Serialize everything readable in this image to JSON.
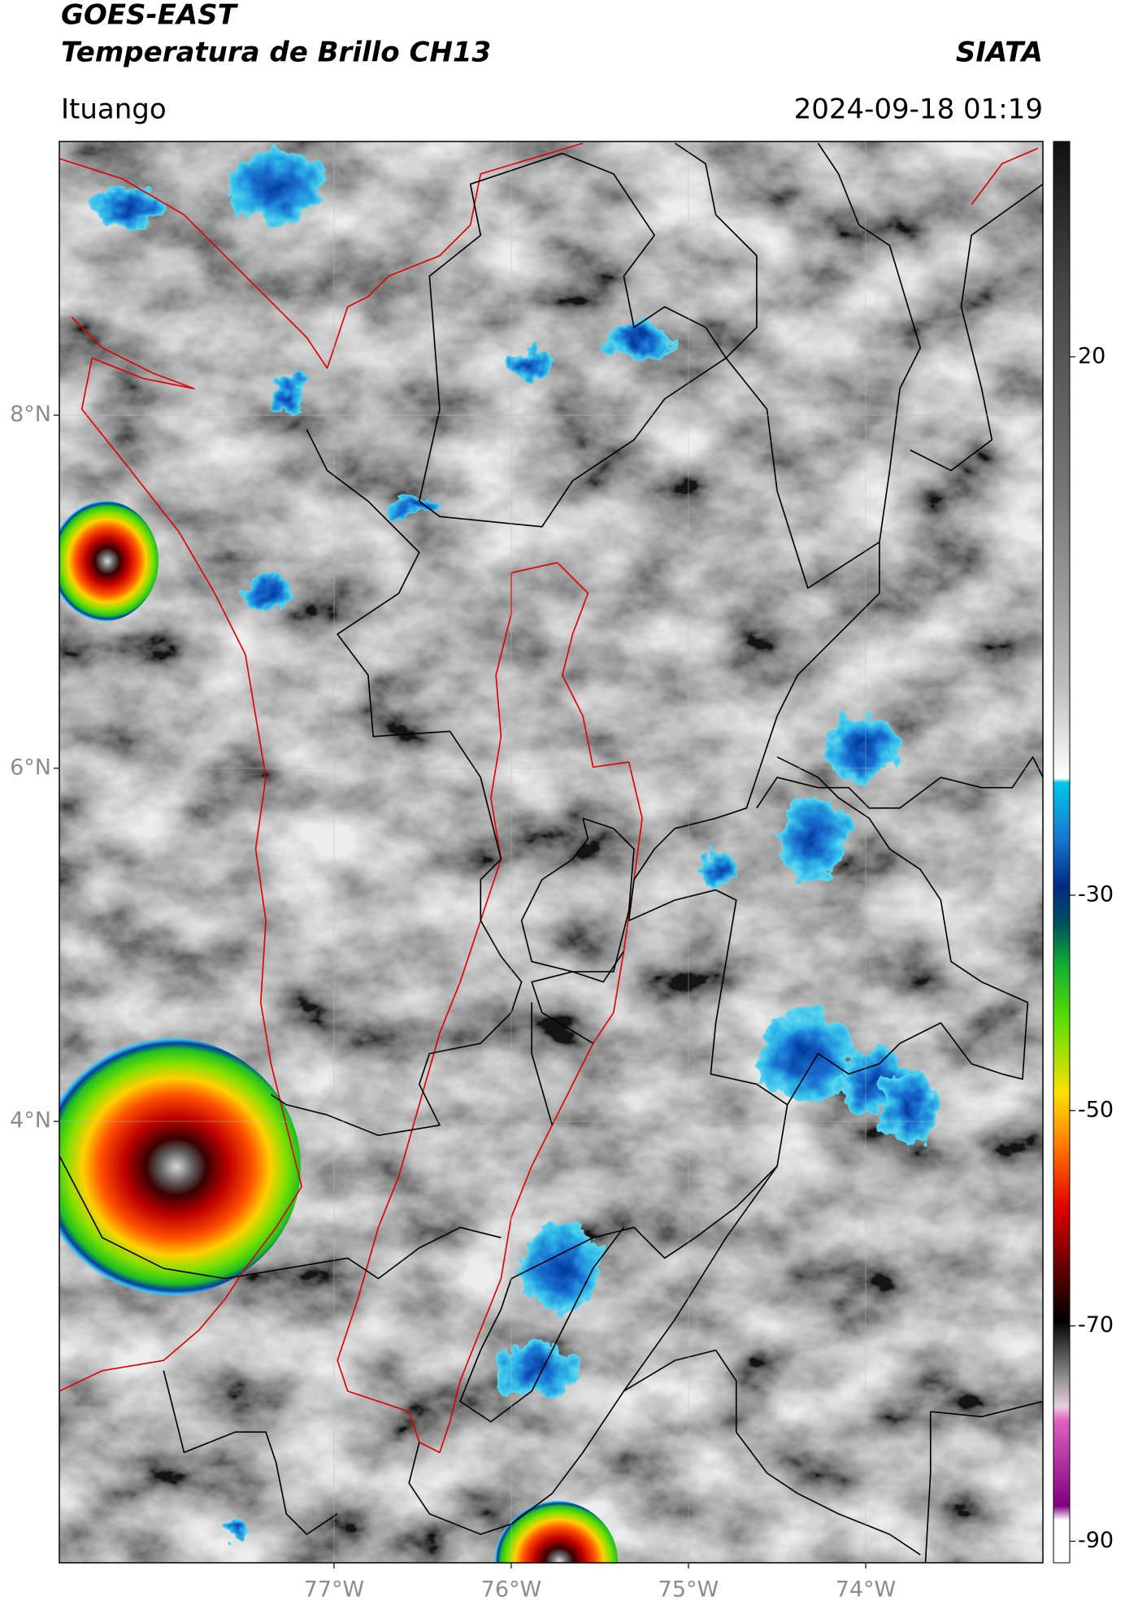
{
  "header": {
    "title": "GOES-EAST",
    "subtitle": "Temperatura de Brillo CH13",
    "organization": "SIATA",
    "region": "Ituango",
    "datetime": "2024-09-18 01:19"
  },
  "map": {
    "xlim": [
      -78.55,
      -73.0
    ],
    "ylim": [
      1.5,
      9.55
    ],
    "xticks": [
      {
        "value": -77,
        "label": "77°W"
      },
      {
        "value": -76,
        "label": "76°W"
      },
      {
        "value": -75,
        "label": "75°W"
      },
      {
        "value": -74,
        "label": "74°W"
      }
    ],
    "yticks": [
      {
        "value": 8,
        "label": "8°N"
      },
      {
        "value": 6,
        "label": "6°N"
      },
      {
        "value": 4,
        "label": "4°N"
      }
    ],
    "grid": true
  },
  "colorbar": {
    "clim": [
      -92,
      40
    ],
    "ticks": [
      20,
      -30,
      -50,
      -70,
      -90
    ]
  }
}
